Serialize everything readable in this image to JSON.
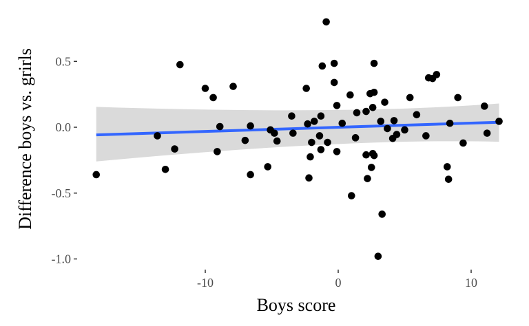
{
  "chart_data": {
    "type": "scatter",
    "title": "",
    "xlabel": "Boys score",
    "ylabel": "Difference boys vs. grirls",
    "xlim": [
      -18.5,
      12.2
    ],
    "ylim": [
      -1.05,
      0.85
    ],
    "x_ticks": [
      -10,
      0,
      10
    ],
    "x_tick_labels": [
      "-10",
      "0",
      "10"
    ],
    "y_ticks": [
      0.5,
      0.0,
      -0.5,
      -1.0
    ],
    "y_tick_labels": [
      "0.5",
      "0.0",
      "-0.5",
      "-1.0"
    ],
    "grid": false,
    "legend": "none",
    "points": [
      {
        "x": -18.2,
        "y": -0.36
      },
      {
        "x": -13.6,
        "y": -0.065
      },
      {
        "x": -13.0,
        "y": -0.32
      },
      {
        "x": -12.3,
        "y": -0.165
      },
      {
        "x": -11.9,
        "y": 0.475
      },
      {
        "x": -10.0,
        "y": 0.295
      },
      {
        "x": -9.4,
        "y": 0.225
      },
      {
        "x": -9.1,
        "y": -0.185
      },
      {
        "x": -8.9,
        "y": 0.005
      },
      {
        "x": -7.9,
        "y": 0.31
      },
      {
        "x": -7.0,
        "y": -0.1
      },
      {
        "x": -6.6,
        "y": 0.01
      },
      {
        "x": -6.6,
        "y": -0.36
      },
      {
        "x": -5.3,
        "y": -0.3
      },
      {
        "x": -5.1,
        "y": -0.02
      },
      {
        "x": -4.8,
        "y": -0.045
      },
      {
        "x": -4.6,
        "y": -0.105
      },
      {
        "x": -3.5,
        "y": 0.085
      },
      {
        "x": -3.4,
        "y": -0.045
      },
      {
        "x": -2.4,
        "y": 0.295
      },
      {
        "x": -2.3,
        "y": 0.025
      },
      {
        "x": -2.2,
        "y": -0.385
      },
      {
        "x": -2.1,
        "y": -0.225
      },
      {
        "x": -2.0,
        "y": -0.115
      },
      {
        "x": -1.8,
        "y": 0.045
      },
      {
        "x": -1.4,
        "y": -0.065
      },
      {
        "x": -1.3,
        "y": 0.085
      },
      {
        "x": -1.3,
        "y": -0.17
      },
      {
        "x": -1.2,
        "y": 0.465
      },
      {
        "x": -0.9,
        "y": 0.8
      },
      {
        "x": -0.8,
        "y": -0.115
      },
      {
        "x": -0.3,
        "y": 0.485
      },
      {
        "x": -0.3,
        "y": 0.34
      },
      {
        "x": -0.1,
        "y": 0.165
      },
      {
        "x": -0.1,
        "y": -0.185
      },
      {
        "x": 0.3,
        "y": 0.03
      },
      {
        "x": 0.9,
        "y": 0.245
      },
      {
        "x": 1.0,
        "y": -0.52
      },
      {
        "x": 1.3,
        "y": -0.08
      },
      {
        "x": 1.4,
        "y": 0.11
      },
      {
        "x": 2.1,
        "y": 0.12
      },
      {
        "x": 2.1,
        "y": -0.21
      },
      {
        "x": 2.2,
        "y": -0.39
      },
      {
        "x": 2.4,
        "y": 0.255
      },
      {
        "x": 2.5,
        "y": -0.305
      },
      {
        "x": 2.6,
        "y": 0.15
      },
      {
        "x": 2.6,
        "y": -0.2
      },
      {
        "x": 2.7,
        "y": 0.485
      },
      {
        "x": 2.7,
        "y": 0.265
      },
      {
        "x": 2.7,
        "y": -0.215
      },
      {
        "x": 3.0,
        "y": -0.98
      },
      {
        "x": 3.2,
        "y": 0.045
      },
      {
        "x": 3.3,
        "y": -0.66
      },
      {
        "x": 3.5,
        "y": 0.19
      },
      {
        "x": 3.7,
        "y": -0.01
      },
      {
        "x": 4.1,
        "y": -0.085
      },
      {
        "x": 4.2,
        "y": 0.05
      },
      {
        "x": 4.4,
        "y": -0.055
      },
      {
        "x": 5.0,
        "y": -0.02
      },
      {
        "x": 5.4,
        "y": 0.225
      },
      {
        "x": 5.9,
        "y": 0.095
      },
      {
        "x": 6.6,
        "y": -0.065
      },
      {
        "x": 6.8,
        "y": 0.375
      },
      {
        "x": 7.1,
        "y": 0.37
      },
      {
        "x": 7.4,
        "y": 0.4
      },
      {
        "x": 8.2,
        "y": -0.3
      },
      {
        "x": 8.3,
        "y": -0.395
      },
      {
        "x": 8.4,
        "y": 0.03
      },
      {
        "x": 9.0,
        "y": 0.225
      },
      {
        "x": 9.4,
        "y": -0.12
      },
      {
        "x": 11.0,
        "y": 0.16
      },
      {
        "x": 11.2,
        "y": -0.045
      },
      {
        "x": 12.1,
        "y": 0.045
      }
    ],
    "trend": {
      "type": "linear",
      "x": [
        -18.2,
        12.1
      ],
      "y": [
        -0.058,
        0.038
      ],
      "ci_upper": [
        0.155,
        0.18
      ],
      "ci_lower": [
        -0.26,
        -0.11
      ],
      "ci_mid": {
        "x": 0.5,
        "upper": 0.05,
        "lower": -0.04
      }
    },
    "colors": {
      "points": "#000000",
      "trend_line": "#3366FF",
      "ci_band": "#D6D6D6",
      "axis_ticks": "#333333"
    }
  }
}
